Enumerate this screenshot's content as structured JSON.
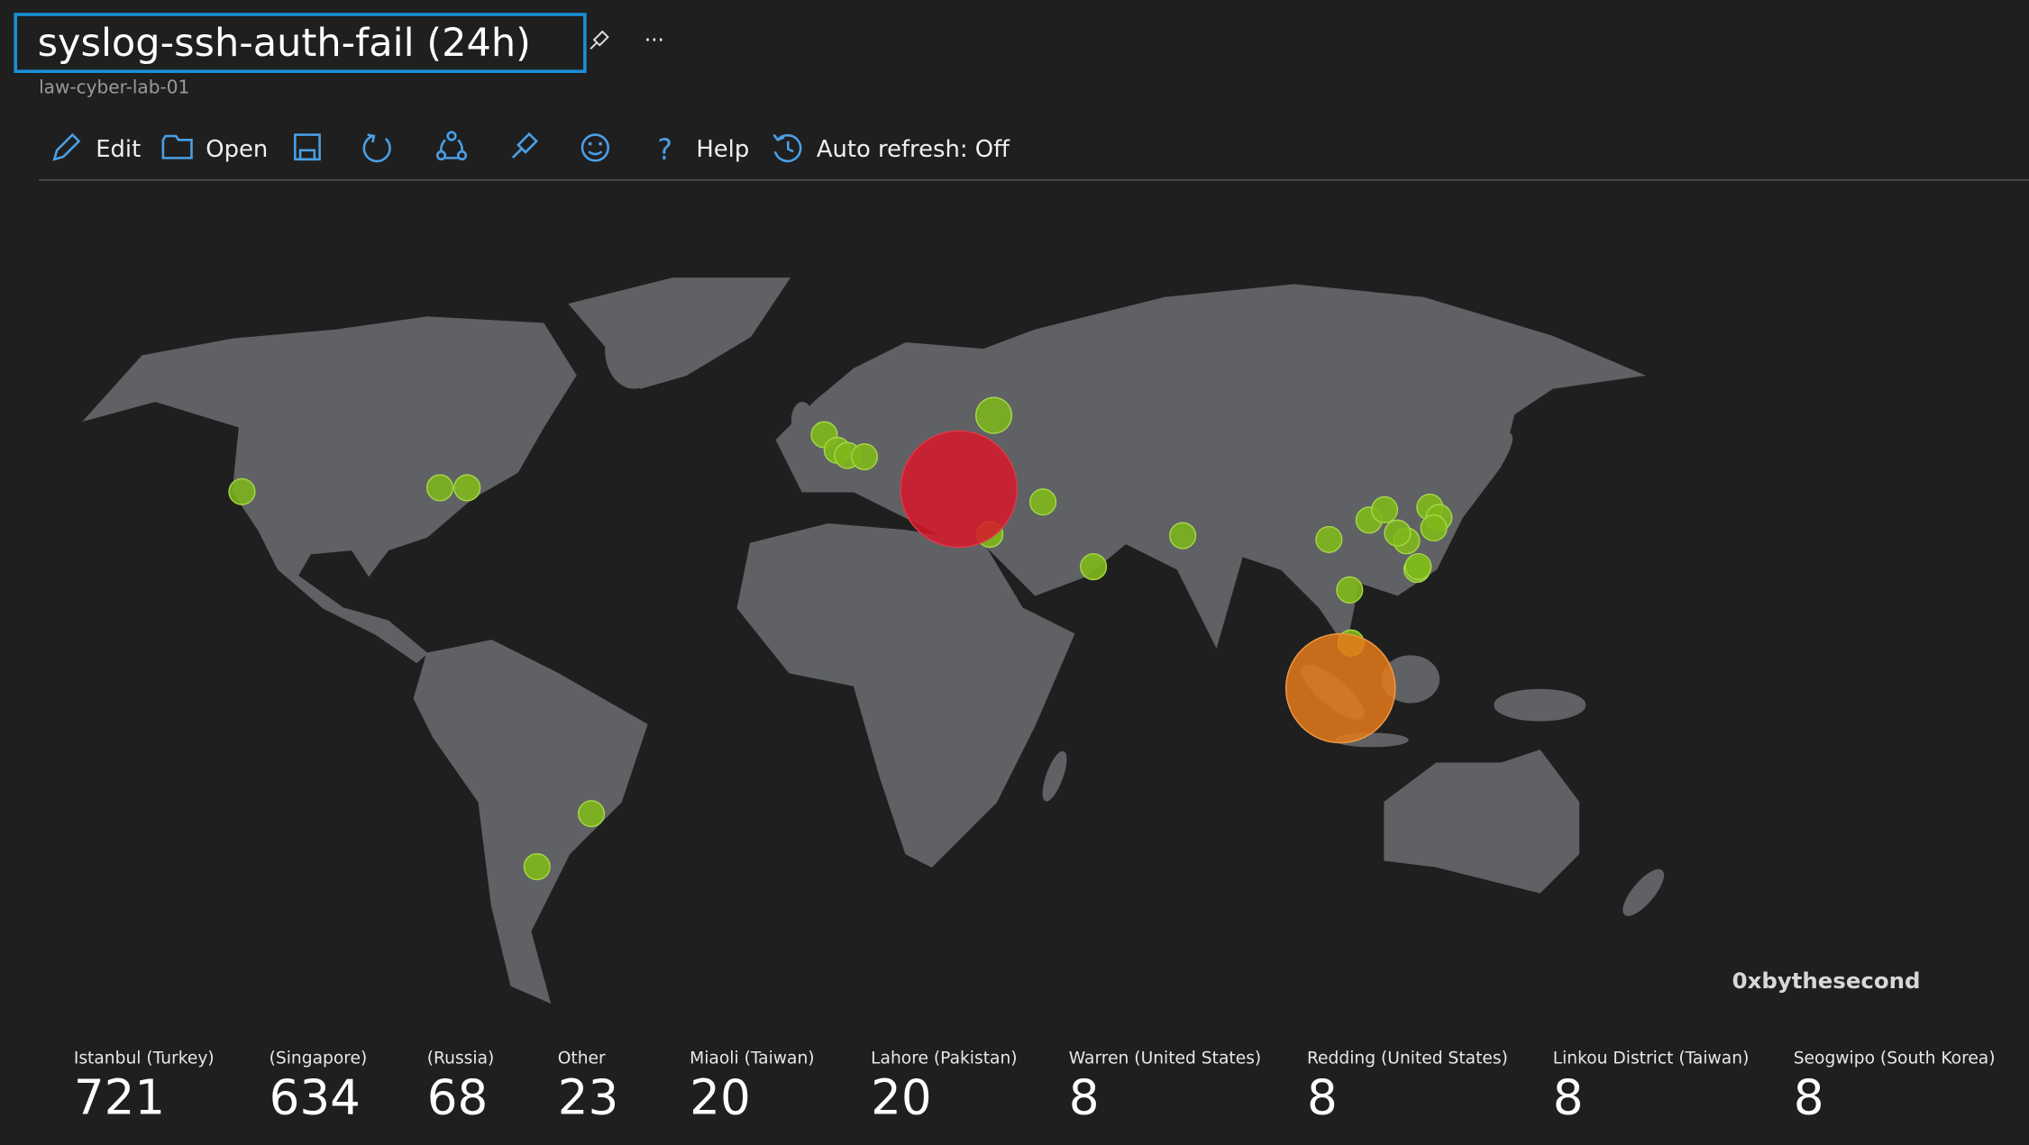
{
  "header": {
    "title": "syslog-ssh-auth-fail (24h)",
    "subtitle": "law-cyber-lab-01"
  },
  "toolbar": [
    "Edit",
    "Open",
    "Help",
    "Auto refresh: Off"
  ],
  "map": {
    "watermark": "0xbythesecond",
    "legend": [
      {
        "label": "Istanbul (Turkey)",
        "value": 721
      },
      {
        "label": "(Singapore)",
        "value": 634
      },
      {
        "label": "(Russia)",
        "value": 68
      },
      {
        "label": "Other",
        "value": 23
      },
      {
        "label": "Miaoli (Taiwan)",
        "value": 20
      },
      {
        "label": "Lahore (Pakistan)",
        "value": 20
      },
      {
        "label": "Warren (United States)",
        "value": 8
      },
      {
        "label": "Redding (United States)",
        "value": 8
      },
      {
        "label": "Linkou District (Taiwan)",
        "value": 8
      },
      {
        "label": "Seogwipo (South Korea)",
        "value": 8
      }
    ]
  }
}
